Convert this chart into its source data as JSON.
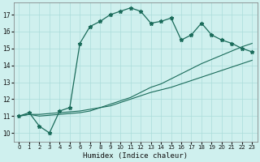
{
  "xlabel": "Humidex (Indice chaleur)",
  "bg_color": "#cff0ee",
  "grid_color": "#aaddda",
  "line_color": "#1a6b5a",
  "xlim": [
    -0.5,
    23.5
  ],
  "ylim": [
    9.5,
    17.7
  ],
  "xticks": [
    0,
    1,
    2,
    3,
    4,
    5,
    6,
    7,
    8,
    9,
    10,
    11,
    12,
    13,
    14,
    15,
    16,
    17,
    18,
    19,
    20,
    21,
    22,
    23
  ],
  "yticks": [
    10,
    11,
    12,
    13,
    14,
    15,
    16,
    17
  ],
  "main_y": [
    11.0,
    11.2,
    10.4,
    10.0,
    11.3,
    11.5,
    15.3,
    16.3,
    16.6,
    17.0,
    17.2,
    17.4,
    17.2,
    16.5,
    16.6,
    16.8,
    15.5,
    15.8,
    16.5,
    15.8,
    15.5,
    15.3,
    15.0,
    14.8
  ],
  "line2_y": [
    11.0,
    11.1,
    11.1,
    11.15,
    11.2,
    11.25,
    11.3,
    11.4,
    11.5,
    11.6,
    11.8,
    12.0,
    12.2,
    12.4,
    12.55,
    12.7,
    12.9,
    13.1,
    13.3,
    13.5,
    13.7,
    13.9,
    14.1,
    14.3
  ],
  "line3_y": [
    11.0,
    11.1,
    11.0,
    11.05,
    11.1,
    11.15,
    11.2,
    11.3,
    11.5,
    11.7,
    11.9,
    12.1,
    12.4,
    12.7,
    12.9,
    13.2,
    13.5,
    13.8,
    14.1,
    14.35,
    14.6,
    14.85,
    15.1,
    15.3
  ]
}
